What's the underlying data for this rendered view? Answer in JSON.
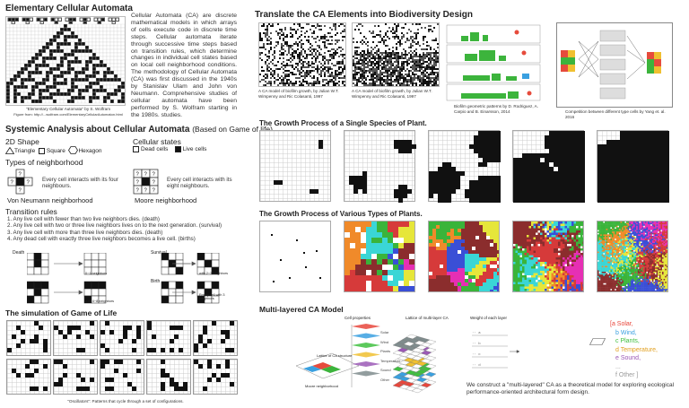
{
  "left": {
    "eca_title": "Elementary Cellular Automata",
    "eca_caption": "\"Elementary Cellular Automata\" by S. Wolfram",
    "eca_source": "Figure from: http://...wolfram.com/ElementaryCellularAutomaton.html",
    "eca_body": "Cellular Automata (CA) are discrete mathematical models in which arrays of cells execute code in discrete time steps. Cellular automata iterate through successive time steps based on transition rules, which determine changes in individual cell states based on local cell neighborhood conditions. The methodology of Cellular Automata (CA) was first discussed in the 1940s by Stanislav Ulam and John von Neumann. Comprehensive studies of cellular automata have been performed by S. Wolfram starting in the 1980s. studies.",
    "sys_title": "Systemic Analysis about Cellular Automata",
    "sys_title_note": "(Based on Game of life)",
    "shape_title": "2D Shape",
    "shapes": [
      "Triangle",
      "Square",
      "Hexagon"
    ],
    "states_title": "Cellular states",
    "states": [
      "Dead cells",
      "Live cells"
    ],
    "neighborhood_title": "Types of neighborhood",
    "neighborhood_vn_text": "Every cell interacts with its four neighbours.",
    "neighborhood_vn_label": "Von Neumann neighborhood",
    "neighborhood_moore_text": "Every cell interacts with its eight neighbours.",
    "neighborhood_moore_label": "Moore neighborhood",
    "transition_title": "Transition rules",
    "rules": [
      "1. Any live cell with fewer than two live neighbors dies. (death)",
      "2. Any live cell with two or three live neighbors lives on to the next generation. (survival)",
      "3. Any live cell with more than three live neighbors dies. (death)",
      "4. Any dead cell with exactly three live neighbors becomes a live cell. (births)"
    ],
    "rule_labels": {
      "death": "Death",
      "survival": "Survival",
      "birth": "Birth",
      "lt2": "0~1 neighbors",
      "gt3": "with 4~8 neighbors",
      "s23": "with 2~3 neighbors",
      "empty3": "Empty cell with 3 neighbors"
    },
    "gol_title": "The simulation of Game of Life",
    "gol_caption": "\"Oscillators\": Patterns that cycle through a set of configurations."
  },
  "right": {
    "translate_title": "Translate the CA Elements into Biodiversity Design",
    "captions": [
      "A CA model of biofilm growth, by Julian W.T. Wimpenny and Ric Colasanti, 1997",
      "A CA model of biofilm growth, by Julian W.T. Wimpenny and Ric Colasanti, 1997",
      "Biofilm geometric patterns by D. Rodriguez, A. Carpio and B. Einarsson, 2014",
      "Competition between different type cells by Yang et. al. 2016"
    ],
    "single_title": "The Growth Process of a Single Species of Plant.",
    "various_title": "The Growth Process of Various Types of Plants.",
    "multi_title": "Multi-layered CA Model",
    "layer_labels": [
      "Solar",
      "Wind",
      "Plants",
      "Temperature",
      "Sound",
      "Other"
    ],
    "layer_colors": [
      "#e8473c",
      "#3aa0e0",
      "#3fbf3f",
      "#f0c030",
      "#9b59b6",
      "#7f8c8d"
    ],
    "multi_labels": {
      "cell_props": "Cell properties",
      "lattice_ml": "Lattice of multi-layer CA",
      "weights": "Weight of each layer",
      "lattice_ca": "Lattice of CA structure",
      "moore": "Moore neighborhood"
    },
    "formula": [
      "[a Solar,",
      "b Wind,",
      "c Plants,",
      "d Temperature,",
      "e Sound,",
      "...",
      "f Other ]"
    ],
    "formula_colors": [
      "#e8473c",
      "#3aa0e0",
      "#3fbf3f",
      "#e2a020",
      "#9b59b6",
      "#999999",
      "#999999"
    ],
    "multi_body": "We construct a \"multi-layered\" CA as a theoretical model for exploring ecological performance-oriented architectural form design."
  }
}
